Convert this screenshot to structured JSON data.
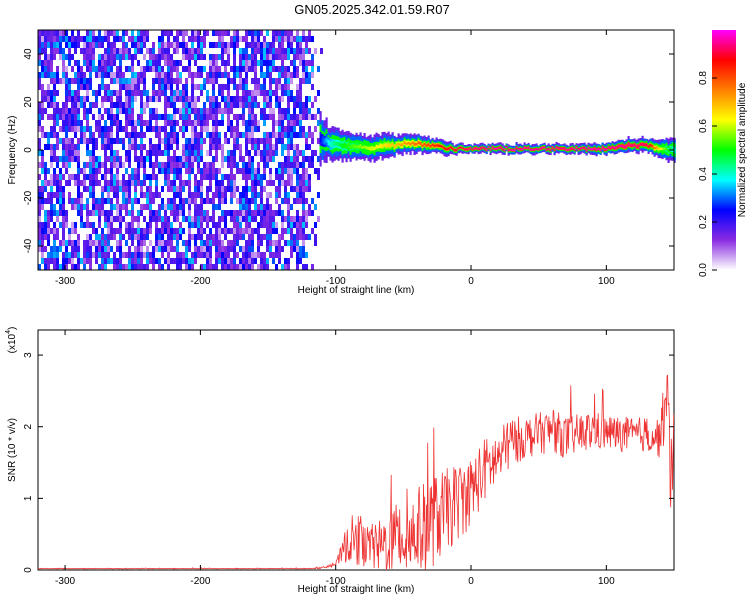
{
  "title": "GN05.2025.342.01.59.R07",
  "chart_data": [
    {
      "type": "heatmap",
      "title": "GN05.2025.342.01.59.R07",
      "xlabel": "Height of straight line (km)",
      "ylabel": "Frequency (Hz)",
      "xlim": [
        -320,
        150
      ],
      "ylim": [
        -50,
        50
      ],
      "x_ticks": [
        -300,
        -200,
        -100,
        0,
        100
      ],
      "y_ticks": [
        -40,
        -20,
        0,
        20,
        40
      ],
      "grid": false,
      "noise_region": {
        "x_from": -320,
        "x_to": -110,
        "description_value_range": [
          0.05,
          0.35
        ]
      },
      "signal_track": {
        "x": [
          -112,
          -105,
          -95,
          -85,
          -75,
          -65,
          -55,
          -45,
          -35,
          -25,
          -15,
          -8,
          0,
          20,
          40,
          60,
          80,
          100,
          115,
          130,
          140,
          150
        ],
        "frequency": [
          5,
          3,
          2,
          1.5,
          1,
          1.5,
          2,
          3,
          2,
          1.5,
          0.5,
          0.5,
          0.5,
          0.5,
          0.5,
          0.5,
          0.5,
          0.5,
          2,
          2,
          0.5,
          0
        ],
        "amplitude": [
          0.25,
          0.4,
          0.5,
          0.55,
          0.6,
          0.65,
          0.7,
          0.75,
          0.8,
          0.85,
          0.9,
          0.92,
          0.95,
          0.97,
          0.97,
          0.95,
          0.97,
          0.97,
          0.95,
          0.92,
          0.6,
          0.4
        ],
        "width_hz": [
          10,
          7,
          6,
          5,
          5,
          5,
          4,
          4,
          3.5,
          3,
          2.5,
          2,
          2,
          2,
          2,
          2,
          2,
          2.5,
          3,
          3,
          4,
          5
        ]
      },
      "colorbar": {
        "label": "Normalized spectral amplitude",
        "range": [
          0.0,
          1.0
        ],
        "ticks": [
          "0.0",
          "0.2",
          "0.4",
          "0.6",
          "0.8"
        ],
        "tick_values": [
          0.0,
          0.2,
          0.4,
          0.6,
          0.8
        ],
        "colormap": [
          "#ffffff",
          "#8a2be2",
          "#0000ff",
          "#00ffff",
          "#00ff00",
          "#ffff00",
          "#ff7f00",
          "#ff0000",
          "#ff00ff"
        ]
      }
    },
    {
      "type": "line",
      "xlabel": "Height of straight line (km)",
      "ylabel": "SNR (10 * v/v)",
      "y_multiplier": "(x10",
      "y_multiplier_exp": "4",
      "y_multiplier_close": ")",
      "xlim": [
        -320,
        150
      ],
      "ylim": [
        0,
        3.35
      ],
      "x_ticks": [
        -300,
        -200,
        -100,
        0,
        100
      ],
      "y_ticks": [
        0,
        1,
        2,
        3
      ],
      "grid": false,
      "color": "#ee3333",
      "series": [
        {
          "name": "SNR",
          "x": [
            -320,
            -250,
            -200,
            -150,
            -120,
            -110,
            -100,
            -95,
            -90,
            -80,
            -70,
            -60,
            -50,
            -40,
            -30,
            -20,
            -10,
            0,
            10,
            20,
            30,
            40,
            50,
            60,
            70,
            80,
            90,
            100,
            110,
            120,
            130,
            140,
            145,
            148,
            150
          ],
          "values": [
            0.02,
            0.02,
            0.02,
            0.02,
            0.02,
            0.03,
            0.08,
            0.25,
            0.45,
            0.35,
            0.3,
            0.4,
            0.45,
            0.55,
            0.65,
            0.8,
            0.95,
            1.1,
            1.4,
            1.55,
            1.8,
            1.85,
            1.9,
            1.95,
            1.85,
            1.9,
            1.95,
            1.92,
            1.9,
            1.88,
            1.9,
            1.85,
            2.4,
            1.2,
            1.8
          ],
          "amplitude": [
            0.005,
            0.005,
            0.005,
            0.005,
            0.005,
            0.01,
            0.03,
            0.15,
            0.35,
            0.3,
            0.35,
            0.45,
            0.55,
            0.6,
            0.65,
            0.6,
            0.55,
            0.5,
            0.45,
            0.4,
            0.35,
            0.3,
            0.3,
            0.3,
            0.3,
            0.28,
            0.28,
            0.25,
            0.25,
            0.25,
            0.25,
            0.3,
            0.5,
            0.6,
            0.5
          ]
        }
      ]
    }
  ]
}
